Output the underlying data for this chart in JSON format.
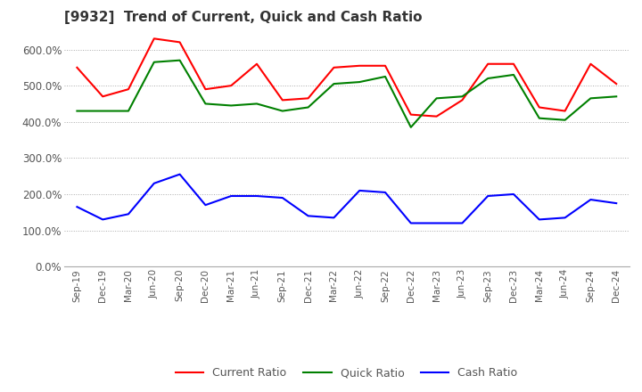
{
  "title": "[9932]  Trend of Current, Quick and Cash Ratio",
  "title_fontsize": 11,
  "labels": [
    "Sep-19",
    "Dec-19",
    "Mar-20",
    "Jun-20",
    "Sep-20",
    "Dec-20",
    "Mar-21",
    "Jun-21",
    "Sep-21",
    "Dec-21",
    "Mar-22",
    "Jun-22",
    "Sep-22",
    "Dec-22",
    "Mar-23",
    "Jun-23",
    "Sep-23",
    "Dec-23",
    "Mar-24",
    "Jun-24",
    "Sep-24",
    "Dec-24"
  ],
  "current_ratio": [
    550,
    470,
    490,
    630,
    620,
    490,
    500,
    560,
    460,
    465,
    550,
    555,
    555,
    420,
    415,
    460,
    560,
    560,
    440,
    430,
    560,
    505
  ],
  "quick_ratio": [
    430,
    430,
    430,
    565,
    570,
    450,
    445,
    450,
    430,
    440,
    505,
    510,
    525,
    385,
    465,
    470,
    520,
    530,
    410,
    405,
    465,
    470
  ],
  "cash_ratio": [
    165,
    130,
    145,
    230,
    255,
    170,
    195,
    195,
    190,
    140,
    135,
    210,
    205,
    120,
    120,
    120,
    195,
    200,
    130,
    135,
    185,
    175
  ],
  "ylim": [
    0,
    650
  ],
  "yticks": [
    0,
    100,
    200,
    300,
    400,
    500,
    600
  ],
  "current_color": "#FF0000",
  "quick_color": "#008000",
  "cash_color": "#0000FF",
  "bg_color": "#FFFFFF",
  "grid_color": "#AAAAAA",
  "line_width": 1.5
}
